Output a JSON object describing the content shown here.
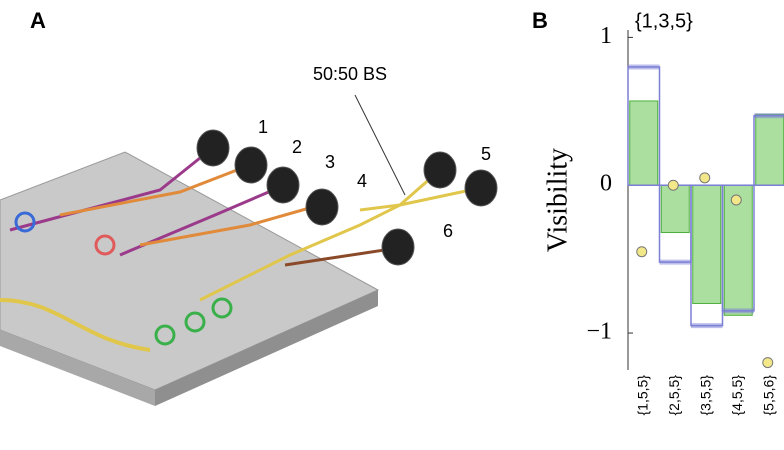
{
  "panels": {
    "a": "A",
    "b": "B"
  },
  "figure_a": {
    "splitter": "50:50 BS",
    "detectors": [
      "1",
      "2",
      "3",
      "4",
      "5",
      "6"
    ]
  },
  "chart_data": {
    "type": "bar",
    "title": "{1,3,5}",
    "y_label": "Visibility",
    "categories": [
      "{1,5,5}",
      "{2,5,5}",
      "{3,5,5}",
      "{4,5,5}",
      "{5,5,6}"
    ],
    "series": [
      {
        "color": "#7b7fd6",
        "values": [
          0.8,
          -0.52,
          -0.95,
          -0.85,
          0.47
        ]
      },
      {
        "color": "#8fd47f",
        "values": [
          0.57,
          -0.32,
          -0.8,
          -0.88,
          0.48
        ]
      },
      {
        "color": "#f3e889",
        "values": [
          -0.45,
          0.0,
          0.05,
          -0.1,
          -1.2
        ]
      }
    ],
    "ylim": [
      -1.25,
      1.05
    ],
    "yticks": [
      {
        "value": -1,
        "label": "−1"
      },
      0,
      1
    ]
  }
}
